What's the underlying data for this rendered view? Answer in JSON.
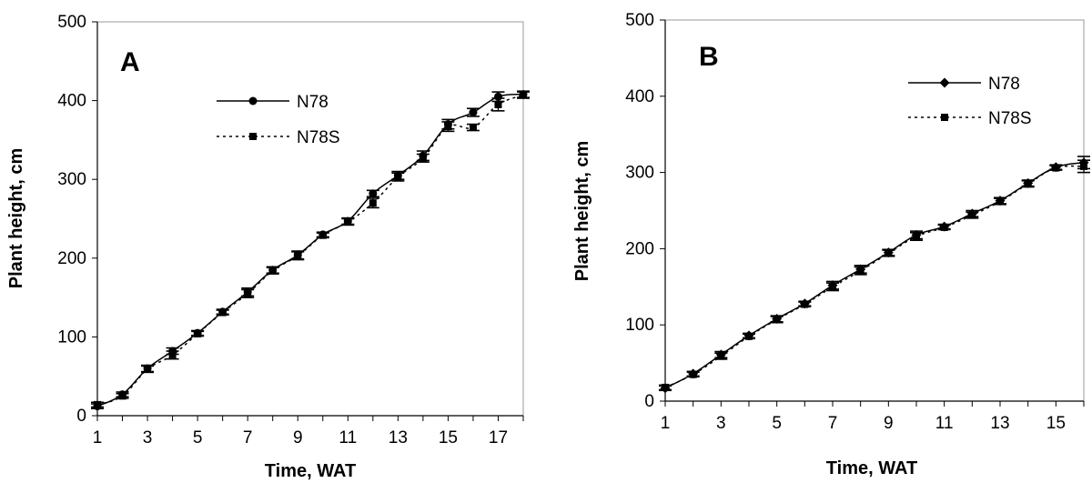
{
  "chart_data": [
    {
      "type": "line",
      "panel_label": "A",
      "xlabel": "Time, WAT",
      "ylabel": "Plant height, cm",
      "xlim": [
        1,
        18
      ],
      "ylim": [
        0,
        500
      ],
      "xticks": [
        "1",
        "3",
        "5",
        "7",
        "9",
        "11",
        "13",
        "15",
        "17"
      ],
      "yticks": [
        "0",
        "100",
        "200",
        "300",
        "400",
        "500"
      ],
      "grid": false,
      "legend_position": "upper-middle",
      "x": [
        1,
        2,
        3,
        4,
        5,
        6,
        7,
        8,
        9,
        10,
        11,
        12,
        13,
        14,
        15,
        16,
        17,
        18
      ],
      "series": [
        {
          "name": "N78",
          "style": "solid",
          "marker": "circle",
          "values": [
            12,
            27,
            60,
            82,
            105,
            132,
            157,
            185,
            204,
            230,
            247,
            282,
            305,
            330,
            370,
            385,
            405,
            408
          ],
          "errors": [
            3,
            3,
            4,
            4,
            3,
            3,
            5,
            4,
            5,
            3,
            4,
            4,
            5,
            6,
            6,
            5,
            6,
            4
          ]
        },
        {
          "name": "N78S",
          "style": "dotted",
          "marker": "square",
          "values": [
            14,
            25,
            59,
            77,
            104,
            131,
            155,
            184,
            203,
            229,
            246,
            270,
            303,
            327,
            367,
            366,
            395,
            407
          ],
          "errors": [
            3,
            3,
            4,
            5,
            3,
            3,
            5,
            4,
            5,
            3,
            4,
            6,
            5,
            5,
            6,
            4,
            8,
            4
          ]
        }
      ]
    },
    {
      "type": "line",
      "panel_label": "B",
      "xlabel": "Time, WAT",
      "ylabel": "Plant height, cm",
      "xlim": [
        1,
        16
      ],
      "ylim": [
        0,
        500
      ],
      "xticks": [
        "1",
        "3",
        "5",
        "7",
        "9",
        "11",
        "13",
        "15"
      ],
      "yticks": [
        "0",
        "100",
        "200",
        "300",
        "400",
        "500"
      ],
      "grid": false,
      "legend_position": "upper-right",
      "x": [
        1,
        2,
        3,
        4,
        5,
        6,
        7,
        8,
        9,
        10,
        11,
        12,
        13,
        14,
        15,
        16
      ],
      "series": [
        {
          "name": "N78",
          "style": "solid",
          "marker": "diamond",
          "values": [
            17,
            36,
            61,
            86,
            108,
            128,
            152,
            173,
            195,
            218,
            229,
            246,
            263,
            286,
            307,
            313
          ],
          "errors": [
            3,
            3,
            4,
            3,
            4,
            3,
            5,
            5,
            4,
            5,
            3,
            4,
            4,
            4,
            3,
            8
          ]
        },
        {
          "name": "N78S",
          "style": "dotted",
          "marker": "square",
          "values": [
            18,
            35,
            59,
            85,
            107,
            127,
            150,
            171,
            194,
            216,
            228,
            244,
            262,
            285,
            306,
            308
          ],
          "errors": [
            3,
            3,
            4,
            3,
            4,
            3,
            5,
            5,
            4,
            5,
            3,
            4,
            4,
            4,
            3,
            8
          ]
        }
      ]
    }
  ]
}
